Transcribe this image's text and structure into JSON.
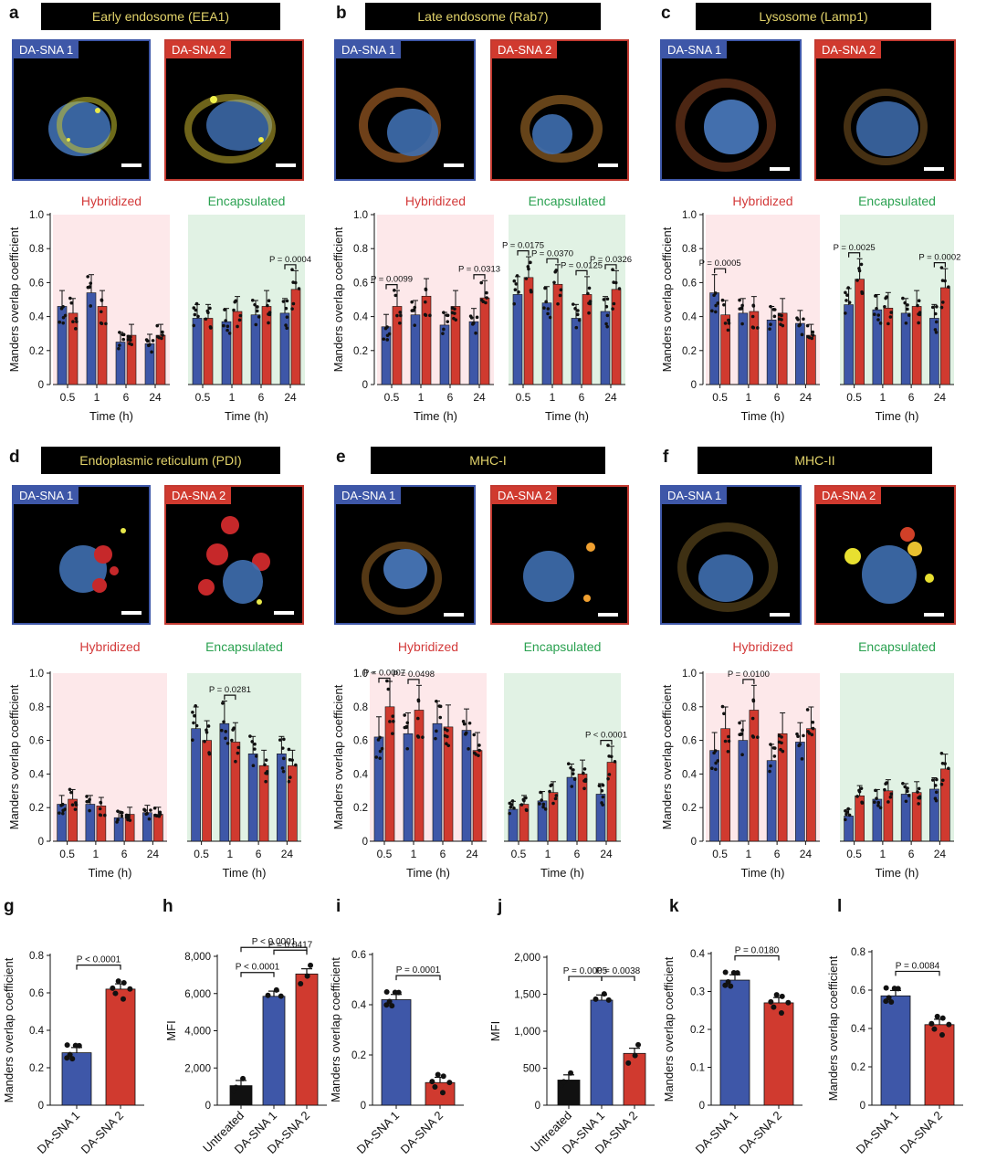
{
  "panels": {
    "a": {
      "letter": "a",
      "title": "Early endosome (EEA1)",
      "img1": "DA-SNA 1",
      "img2": "DA-SNA 2"
    },
    "b": {
      "letter": "b",
      "title": "Late endosome (Rab7)",
      "img1": "DA-SNA 1",
      "img2": "DA-SNA 2"
    },
    "c": {
      "letter": "c",
      "title": "Lysosome (Lamp1)",
      "img1": "DA-SNA 1",
      "img2": "DA-SNA 2"
    },
    "d": {
      "letter": "d",
      "title": "Endoplasmic reticulum (PDI)",
      "img1": "DA-SNA 1",
      "img2": "DA-SNA 2"
    },
    "e": {
      "letter": "e",
      "title": "MHC-I",
      "img1": "DA-SNA 1",
      "img2": "DA-SNA 2"
    },
    "f": {
      "letter": "f",
      "title": "MHC-II",
      "img1": "DA-SNA 1",
      "img2": "DA-SNA 2"
    }
  },
  "colors": {
    "blue": "#3e57a8",
    "red": "#d03a2f",
    "black": "#111111",
    "hyb_bg": "#fde8ea",
    "enc_bg": "#e1f2e4",
    "hyb_text": "#d33a3a",
    "enc_text": "#2aa150"
  },
  "chart_data": [
    {
      "id": "a",
      "type": "bar",
      "groups": [
        "Hybridized",
        "Encapsulated"
      ],
      "categories": [
        "0.5",
        "1",
        "6",
        "24"
      ],
      "xlabel": "Time (h)",
      "ylabel": "Manders overlap coefficient",
      "ylim": [
        0,
        1
      ],
      "yticks": [
        "0",
        "0.2",
        "0.4",
        "0.6",
        "0.8",
        "1.0"
      ],
      "series": [
        {
          "group": "Hybridized",
          "values": [
            [
              0.46,
              0.42
            ],
            [
              0.54,
              0.46
            ],
            [
              0.25,
              0.29
            ],
            [
              0.24,
              0.29
            ]
          ]
        },
        {
          "group": "Encapsulated",
          "values": [
            [
              0.39,
              0.39
            ],
            [
              0.37,
              0.43
            ],
            [
              0.41,
              0.46
            ],
            [
              0.42,
              0.56
            ]
          ]
        }
      ],
      "annotations": [
        {
          "group": "Encapsulated",
          "cat": 3,
          "text": "P = 0.0004"
        }
      ]
    },
    {
      "id": "b",
      "type": "bar",
      "groups": [
        "Hybridized",
        "Encapsulated"
      ],
      "categories": [
        "0.5",
        "1",
        "6",
        "24"
      ],
      "xlabel": "Time (h)",
      "ylabel": "Manders overlap coefficient",
      "ylim": [
        0,
        1
      ],
      "yticks": [
        "0",
        "0.2",
        "0.4",
        "0.6",
        "0.8",
        "1.0"
      ],
      "series": [
        {
          "group": "Hybridized",
          "values": [
            [
              0.34,
              0.46
            ],
            [
              0.41,
              0.52
            ],
            [
              0.35,
              0.46
            ],
            [
              0.37,
              0.51
            ]
          ]
        },
        {
          "group": "Encapsulated",
          "values": [
            [
              0.53,
              0.63
            ],
            [
              0.48,
              0.59
            ],
            [
              0.39,
              0.53
            ],
            [
              0.43,
              0.56
            ]
          ]
        }
      ],
      "annotations": [
        {
          "group": "Hybridized",
          "cat": 0,
          "text": "P = 0.0099"
        },
        {
          "group": "Hybridized",
          "cat": 3,
          "text": "P = 0.0313"
        },
        {
          "group": "Encapsulated",
          "cat": 0,
          "text": "P = 0.0175"
        },
        {
          "group": "Encapsulated",
          "cat": 1,
          "text": "P = 0.0370"
        },
        {
          "group": "Encapsulated",
          "cat": 2,
          "text": "P = 0.0125"
        },
        {
          "group": "Encapsulated",
          "cat": 3,
          "text": "P = 0.0326"
        }
      ]
    },
    {
      "id": "c",
      "type": "bar",
      "groups": [
        "Hybridized",
        "Encapsulated"
      ],
      "categories": [
        "0.5",
        "1",
        "6",
        "24"
      ],
      "xlabel": "Time (h)",
      "ylabel": "Manders overlap coefficient",
      "ylim": [
        0,
        1
      ],
      "yticks": [
        "0",
        "0.2",
        "0.4",
        "0.6",
        "0.8",
        "1.0"
      ],
      "series": [
        {
          "group": "Hybridized",
          "values": [
            [
              0.54,
              0.41
            ],
            [
              0.42,
              0.43
            ],
            [
              0.38,
              0.42
            ],
            [
              0.36,
              0.29
            ]
          ]
        },
        {
          "group": "Encapsulated",
          "values": [
            [
              0.47,
              0.62
            ],
            [
              0.44,
              0.45
            ],
            [
              0.42,
              0.46
            ],
            [
              0.39,
              0.57
            ]
          ]
        }
      ],
      "annotations": [
        {
          "group": "Hybridized",
          "cat": 0,
          "text": "P = 0.0005"
        },
        {
          "group": "Encapsulated",
          "cat": 0,
          "text": "P = 0.0025"
        },
        {
          "group": "Encapsulated",
          "cat": 3,
          "text": "P = 0.0002"
        }
      ]
    },
    {
      "id": "d",
      "type": "bar",
      "groups": [
        "Hybridized",
        "Encapsulated"
      ],
      "categories": [
        "0.5",
        "1",
        "6",
        "24"
      ],
      "xlabel": "Time (h)",
      "ylabel": "Manders overlap coefficient",
      "ylim": [
        0,
        1
      ],
      "yticks": [
        "0",
        "0.2",
        "0.4",
        "0.6",
        "0.8",
        "1.0"
      ],
      "series": [
        {
          "group": "Hybridized",
          "values": [
            [
              0.22,
              0.25
            ],
            [
              0.22,
              0.21
            ],
            [
              0.14,
              0.16
            ],
            [
              0.17,
              0.16
            ]
          ]
        },
        {
          "group": "Encapsulated",
          "values": [
            [
              0.67,
              0.6
            ],
            [
              0.7,
              0.59
            ],
            [
              0.52,
              0.45
            ],
            [
              0.52,
              0.45
            ]
          ]
        }
      ],
      "annotations": [
        {
          "group": "Encapsulated",
          "cat": 1,
          "text": "P = 0.0281"
        }
      ]
    },
    {
      "id": "e",
      "type": "bar",
      "groups": [
        "Hybridized",
        "Encapsulated"
      ],
      "categories": [
        "0.5",
        "1",
        "6",
        "24"
      ],
      "xlabel": "Time (h)",
      "ylabel": "Manders overlap coefficient",
      "ylim": [
        0,
        1
      ],
      "yticks": [
        "0",
        "0.2",
        "0.4",
        "0.6",
        "0.8",
        "1.0"
      ],
      "series": [
        {
          "group": "Hybridized",
          "values": [
            [
              0.62,
              0.8
            ],
            [
              0.64,
              0.78
            ],
            [
              0.7,
              0.68
            ],
            [
              0.66,
              0.54
            ]
          ]
        },
        {
          "group": "Encapsulated",
          "values": [
            [
              0.19,
              0.22
            ],
            [
              0.24,
              0.29
            ],
            [
              0.38,
              0.4
            ],
            [
              0.28,
              0.47
            ]
          ]
        }
      ],
      "annotations": [
        {
          "group": "Hybridized",
          "cat": 0,
          "text": "P = 0.0007"
        },
        {
          "group": "Hybridized",
          "cat": 1,
          "text": "P = 0.0498"
        },
        {
          "group": "Encapsulated",
          "cat": 3,
          "text": "P < 0.0001"
        }
      ]
    },
    {
      "id": "f",
      "type": "bar",
      "groups": [
        "Hybridized",
        "Encapsulated"
      ],
      "categories": [
        "0.5",
        "1",
        "6",
        "24"
      ],
      "xlabel": "Time (h)",
      "ylabel": "Manders overlap coefficient",
      "ylim": [
        0,
        1
      ],
      "yticks": [
        "0",
        "0.2",
        "0.4",
        "0.6",
        "0.8",
        "1.0"
      ],
      "series": [
        {
          "group": "Hybridized",
          "values": [
            [
              0.54,
              0.67
            ],
            [
              0.6,
              0.78
            ],
            [
              0.48,
              0.64
            ],
            [
              0.59,
              0.67
            ]
          ]
        },
        {
          "group": "Encapsulated",
          "values": [
            [
              0.15,
              0.27
            ],
            [
              0.25,
              0.3
            ],
            [
              0.28,
              0.29
            ],
            [
              0.31,
              0.43
            ]
          ]
        }
      ],
      "annotations": [
        {
          "group": "Hybridized",
          "cat": 1,
          "text": "P = 0.0100"
        }
      ]
    },
    {
      "id": "g",
      "type": "bar",
      "categories": [
        "DA-SNA 1",
        "DA-SNA 2"
      ],
      "values": [
        0.28,
        0.62
      ],
      "ylabel": "Manders overlap coefficient",
      "ylim": [
        0,
        0.8
      ],
      "yticks": [
        "0",
        "0.2",
        "0.4",
        "0.6",
        "0.8"
      ],
      "annotations": [
        {
          "from": 0,
          "to": 1,
          "text": "P < 0.0001"
        }
      ]
    },
    {
      "id": "h",
      "type": "bar",
      "categories": [
        "Untreated",
        "DA-SNA 1",
        "DA-SNA 2"
      ],
      "values": [
        1050,
        5850,
        7050
      ],
      "ylabel": "MFI",
      "ylim": [
        0,
        8000
      ],
      "yticks": [
        "0",
        "2,000",
        "4,000",
        "6,000",
        "8,000"
      ],
      "annotations": [
        {
          "from": 0,
          "to": 1,
          "text": "P < 0.0001"
        },
        {
          "from": 1,
          "to": 2,
          "text": "P = 0.0417"
        },
        {
          "from": 0,
          "to": 2,
          "text": "P < 0.0001"
        }
      ]
    },
    {
      "id": "i",
      "type": "bar",
      "categories": [
        "DA-SNA 1",
        "DA-SNA 2"
      ],
      "values": [
        0.42,
        0.09
      ],
      "ylabel": "Manders overlap coefficient",
      "ylim": [
        0,
        0.6
      ],
      "yticks": [
        "0",
        "0.2",
        "0.4",
        "0.6"
      ],
      "annotations": [
        {
          "from": 0,
          "to": 1,
          "text": "P = 0.0001"
        }
      ]
    },
    {
      "id": "j",
      "type": "bar",
      "categories": [
        "Untreated",
        "DA-SNA 1",
        "DA-SNA 2"
      ],
      "values": [
        340,
        1420,
        700
      ],
      "ylabel": "MFI",
      "ylim": [
        0,
        2000
      ],
      "yticks": [
        "0",
        "500",
        "1,000",
        "1,500",
        "2,000"
      ],
      "annotations": [
        {
          "from": 0,
          "to": 1,
          "text": "P = 0.0005"
        },
        {
          "from": 1,
          "to": 2,
          "text": "P = 0.0038"
        }
      ]
    },
    {
      "id": "k",
      "type": "bar",
      "categories": [
        "DA-SNA 1",
        "DA-SNA 2"
      ],
      "values": [
        0.33,
        0.27
      ],
      "ylabel": "Manders overlap coefficient",
      "ylim": [
        0,
        0.4
      ],
      "yticks": [
        "0",
        "0.1",
        "0.2",
        "0.3",
        "0.4"
      ],
      "annotations": [
        {
          "from": 0,
          "to": 1,
          "text": "P = 0.0180"
        }
      ]
    },
    {
      "id": "l",
      "type": "bar",
      "categories": [
        "DA-SNA 1",
        "DA-SNA 2"
      ],
      "values": [
        0.57,
        0.42
      ],
      "ylabel": "Manders overlap coefficient",
      "ylim": [
        0,
        0.8
      ],
      "yticks": [
        "0",
        "0.2",
        "0.4",
        "0.6",
        "0.8"
      ],
      "annotations": [
        {
          "from": 0,
          "to": 1,
          "text": "P = 0.0084"
        }
      ]
    }
  ]
}
